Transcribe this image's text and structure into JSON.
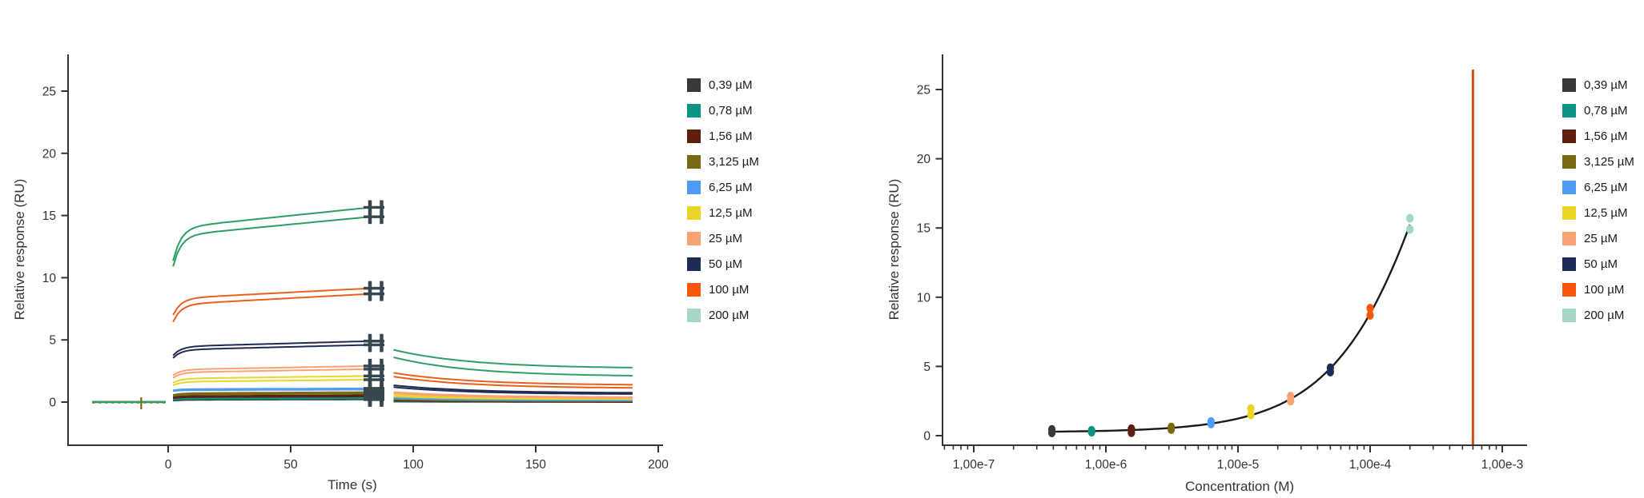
{
  "legend": {
    "entries": [
      {
        "label": "0,39 µM",
        "color": "#383838"
      },
      {
        "label": "0,78 µM",
        "color": "#0B9383"
      },
      {
        "label": "1,56 µM",
        "color": "#5E1F0E"
      },
      {
        "label": "3,125 µM",
        "color": "#786913"
      },
      {
        "label": "6,25 µM",
        "color": "#4F9CF7"
      },
      {
        "label": "12,5 µM",
        "color": "#EAD626"
      },
      {
        "label": "25 µM",
        "color": "#F9A273"
      },
      {
        "label": "50 µM",
        "color": "#1F2B57"
      },
      {
        "label": "100 µM",
        "color": "#F95708"
      },
      {
        "label": "200 µM",
        "color": "#A5D6C8"
      }
    ]
  },
  "chart_data": [
    {
      "type": "line",
      "title": "",
      "xlabel": "Time (s)",
      "ylabel": "Relative response (RU)",
      "xlim": [
        -45,
        210
      ],
      "ylim": [
        -3.5,
        28
      ],
      "xticks": [
        0,
        50,
        100,
        150,
        200
      ],
      "yticks": [
        0,
        5,
        10,
        15,
        20,
        25
      ],
      "grid": false,
      "legend_position": "right",
      "marker_color": "#37474F",
      "baseline": {
        "t_start": -31,
        "t_end": -1,
        "value": 0,
        "spike_t": -11,
        "colors": [
          "#2E9E62",
          "#E8611C",
          "#444444"
        ],
        "spike_color": "#786913"
      },
      "association_window": [
        2,
        82.5
      ],
      "dissociation_window": [
        92,
        190
      ],
      "series": [
        {
          "label": "200 µM",
          "color": "#A5D6C8",
          "curves": [
            [
              0.1,
              0.2,
              0.08,
              0.04
            ]
          ]
        },
        {
          "label": "0,39 µM",
          "color": "#383838",
          "curves": [
            [
              0.18,
              0.3,
              0.06,
              0.02
            ],
            [
              0.12,
              0.22,
              0.04,
              0.0
            ]
          ]
        },
        {
          "label": "0,78 µM",
          "color": "#0B9383",
          "curves": [
            [
              0.25,
              0.38,
              0.1,
              0.03
            ],
            [
              0.2,
              0.3,
              0.08,
              0.02
            ]
          ]
        },
        {
          "label": "1,56 µM",
          "color": "#5E1F0E",
          "curves": [
            [
              0.38,
              0.55,
              0.15,
              0.05
            ],
            [
              0.32,
              0.45,
              0.12,
              0.03
            ]
          ]
        },
        {
          "label": "3,125 µM",
          "color": "#786913",
          "curves": [
            [
              0.58,
              0.8,
              0.25,
              0.1
            ],
            [
              0.5,
              0.68,
              0.2,
              0.07
            ]
          ]
        },
        {
          "label": "6,25 µM",
          "color": "#4F9CF7",
          "curves": [
            [
              0.95,
              1.1,
              0.35,
              0.15
            ],
            [
              0.88,
              1.0,
              0.3,
              0.12
            ]
          ]
        },
        {
          "label": "12,5 µM",
          "color": "#EAD626",
          "curves": [
            [
              1.55,
              2.1,
              0.55,
              0.28
            ],
            [
              1.35,
              1.8,
              0.45,
              0.22
            ]
          ]
        },
        {
          "label": "25 µM",
          "color": "#F9A273",
          "curves": [
            [
              2.15,
              2.9,
              0.8,
              0.38
            ],
            [
              1.95,
              2.65,
              0.7,
              0.32
            ]
          ]
        },
        {
          "label": "50 µM",
          "color": "#1F2B57",
          "curves": [
            [
              3.75,
              4.9,
              1.35,
              0.72
            ],
            [
              3.55,
              4.6,
              1.2,
              0.62
            ]
          ]
        },
        {
          "label": "100 µM",
          "color": "#E8611C",
          "curves": [
            [
              7.0,
              9.15,
              2.35,
              1.35
            ],
            [
              6.45,
              8.7,
              2.05,
              1.1
            ]
          ]
        },
        {
          "label": "200 µM",
          "color": "#2E9E62",
          "curves": [
            [
              11.35,
              15.65,
              4.2,
              2.7
            ],
            [
              10.9,
              14.9,
              3.6,
              2.05
            ]
          ]
        }
      ]
    },
    {
      "type": "scatter",
      "title": "",
      "xlabel": "Concentration (M)",
      "ylabel": "Relative response (RU)",
      "xscale": "log",
      "xlim": [
        4e-08,
        0.0015
      ],
      "ylim": [
        -0.7,
        28
      ],
      "xticks": [
        {
          "label": "1,00e-7",
          "value": 1e-07
        },
        {
          "label": "1,00e-6",
          "value": 1e-06
        },
        {
          "label": "1,00e-5",
          "value": 1e-05
        },
        {
          "label": "1,00e-4",
          "value": 0.0001
        },
        {
          "label": "1,00e-3",
          "value": 0.001
        }
      ],
      "yticks": [
        0,
        5,
        10,
        15,
        20,
        25
      ],
      "grid": false,
      "legend_position": "right",
      "points": [
        {
          "label": "0,39 µM",
          "conc": 3.9e-07,
          "color": "#383838",
          "values": [
            0.2,
            0.45
          ]
        },
        {
          "label": "0,78 µM",
          "conc": 7.8e-07,
          "color": "#0B9383",
          "values": [
            0.25,
            0.38
          ]
        },
        {
          "label": "1,56 µM",
          "conc": 1.56e-06,
          "color": "#5E1F0E",
          "values": [
            0.22,
            0.5
          ]
        },
        {
          "label": "3,125 µM",
          "conc": 3.125e-06,
          "color": "#786913",
          "values": [
            0.45,
            0.62
          ]
        },
        {
          "label": "6,25 µM",
          "conc": 6.25e-06,
          "color": "#4F9CF7",
          "values": [
            0.85,
            1.02
          ]
        },
        {
          "label": "12,5 µM",
          "conc": 1.25e-05,
          "color": "#EAD626",
          "values": [
            1.5,
            1.95
          ]
        },
        {
          "label": "25 µM",
          "conc": 2.5e-05,
          "color": "#F9A273",
          "values": [
            2.5,
            2.85
          ]
        },
        {
          "label": "50 µM",
          "conc": 5e-05,
          "color": "#1F2B57",
          "values": [
            4.6,
            4.9
          ]
        },
        {
          "label": "100 µM",
          "conc": 0.0001,
          "color": "#F95708",
          "values": [
            8.7,
            9.2
          ]
        },
        {
          "label": "200 µM",
          "conc": 0.0002,
          "color": "#A5D6C8",
          "values": [
            14.9,
            15.7
          ]
        }
      ],
      "fit": {
        "model": "steady-state 1:1",
        "rmax": 60,
        "kd": 0.0006,
        "offset": 0.25,
        "c_min": 3.9e-07,
        "c_max": 0.0002,
        "color": "#1A1A1A"
      },
      "kd_line": {
        "value": 0.0006,
        "color": "#D4500F"
      }
    }
  ]
}
